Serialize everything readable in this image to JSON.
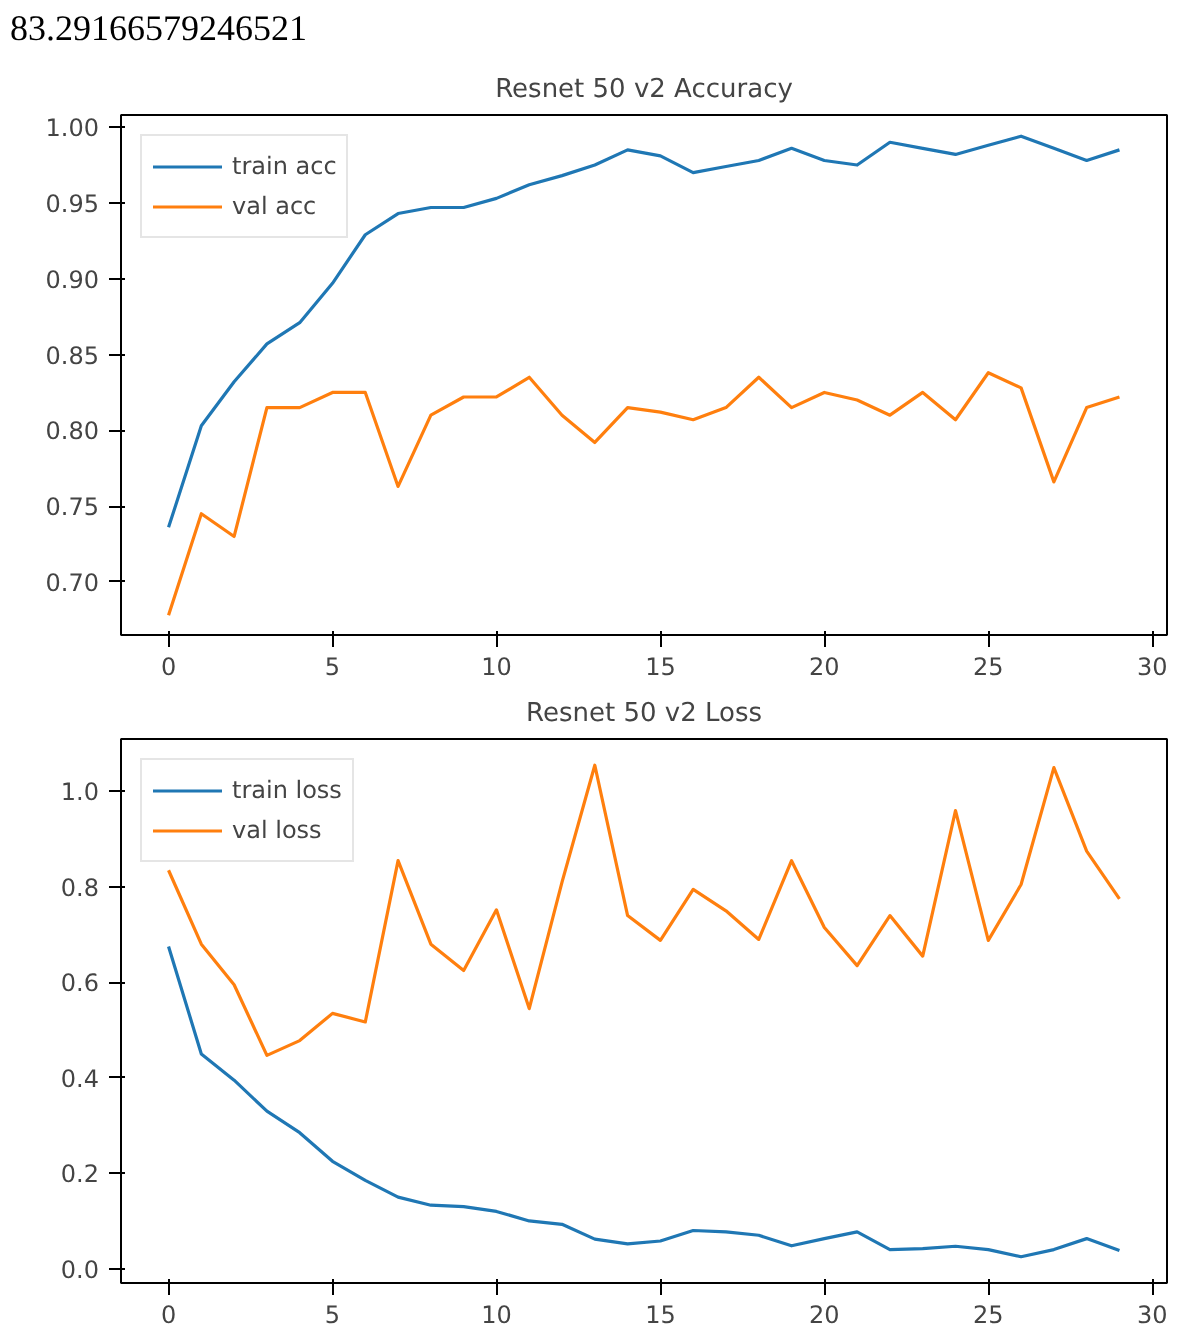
{
  "chart_data": [
    {
      "type": "line",
      "title": "Resnet 50 v2 Accuracy",
      "annotations": [
        "83.29166579246521"
      ],
      "x": [
        0,
        1,
        2,
        3,
        4,
        5,
        6,
        7,
        8,
        9,
        10,
        11,
        12,
        13,
        14,
        15,
        16,
        17,
        18,
        19,
        20,
        21,
        22,
        23,
        24,
        25,
        26,
        27,
        28,
        29
      ],
      "series": [
        {
          "name": "train acc",
          "color": "#1f77b4",
          "values": [
            0.736,
            0.803,
            0.832,
            0.857,
            0.871,
            0.897,
            0.929,
            0.943,
            0.947,
            0.947,
            0.953,
            0.962,
            0.968,
            0.975,
            0.985,
            0.981,
            0.97,
            0.974,
            0.978,
            0.986,
            0.978,
            0.975,
            0.99,
            0.986,
            0.982,
            0.988,
            0.994,
            0.986,
            0.978,
            0.985
          ]
        },
        {
          "name": "val acc",
          "color": "#ff7f0e",
          "values": [
            0.678,
            0.745,
            0.73,
            0.815,
            0.815,
            0.825,
            0.825,
            0.763,
            0.81,
            0.822,
            0.822,
            0.835,
            0.81,
            0.792,
            0.815,
            0.812,
            0.807,
            0.815,
            0.835,
            0.815,
            0.825,
            0.82,
            0.81,
            0.825,
            0.807,
            0.838,
            0.828,
            0.766,
            0.815,
            0.822
          ]
        }
      ],
      "xlim": [
        -1.45,
        30.45
      ],
      "xticks": [
        0,
        5,
        10,
        15,
        20,
        25,
        30
      ],
      "ylim": [
        0.665,
        1.008
      ],
      "yticks": [
        {
          "value": 0.7,
          "label": "0.70"
        },
        {
          "value": 0.75,
          "label": "0.75"
        },
        {
          "value": 0.8,
          "label": "0.80"
        },
        {
          "value": 0.85,
          "label": "0.85"
        },
        {
          "value": 0.9,
          "label": "0.90"
        },
        {
          "value": 0.95,
          "label": "0.95"
        },
        {
          "value": 1.0,
          "label": "1.00"
        }
      ],
      "legend": "top left",
      "grid": false,
      "line_style": "solid"
    },
    {
      "type": "line",
      "title": "Resnet 50 v2 Loss",
      "x": [
        0,
        1,
        2,
        3,
        4,
        5,
        6,
        7,
        8,
        9,
        10,
        11,
        12,
        13,
        14,
        15,
        16,
        17,
        18,
        19,
        20,
        21,
        22,
        23,
        24,
        25,
        26,
        27,
        28,
        29
      ],
      "series": [
        {
          "name": "train loss",
          "color": "#1f77b4",
          "values": [
            0.675,
            0.45,
            0.395,
            0.33,
            0.285,
            0.225,
            0.185,
            0.15,
            0.133,
            0.13,
            0.12,
            0.1,
            0.093,
            0.062,
            0.052,
            0.058,
            0.08,
            0.077,
            0.07,
            0.048,
            0.063,
            0.077,
            0.04,
            0.042,
            0.047,
            0.04,
            0.025,
            0.04,
            0.063,
            0.038
          ]
        },
        {
          "name": "val loss",
          "color": "#ff7f0e",
          "values": [
            0.835,
            0.68,
            0.595,
            0.447,
            0.478,
            0.535,
            0.517,
            0.855,
            0.68,
            0.625,
            0.752,
            0.545,
            0.81,
            1.055,
            0.74,
            0.688,
            0.795,
            0.75,
            0.69,
            0.855,
            0.715,
            0.635,
            0.74,
            0.655,
            0.96,
            0.688,
            0.805,
            1.05,
            0.875,
            0.775
          ]
        }
      ],
      "xlim": [
        -1.45,
        30.45
      ],
      "xticks": [
        0,
        5,
        10,
        15,
        20,
        25,
        30
      ],
      "ylim": [
        -0.03,
        1.11
      ],
      "yticks": [
        {
          "value": 0,
          "label": "0.0"
        },
        {
          "value": 0.2,
          "label": "0.2"
        },
        {
          "value": 0.4,
          "label": "0.4"
        },
        {
          "value": 0.6,
          "label": "0.6"
        },
        {
          "value": 0.8,
          "label": "0.8"
        },
        {
          "value": 1.0,
          "label": "1.0"
        }
      ],
      "legend": "top left",
      "grid": false,
      "line_style": "solid"
    }
  ]
}
